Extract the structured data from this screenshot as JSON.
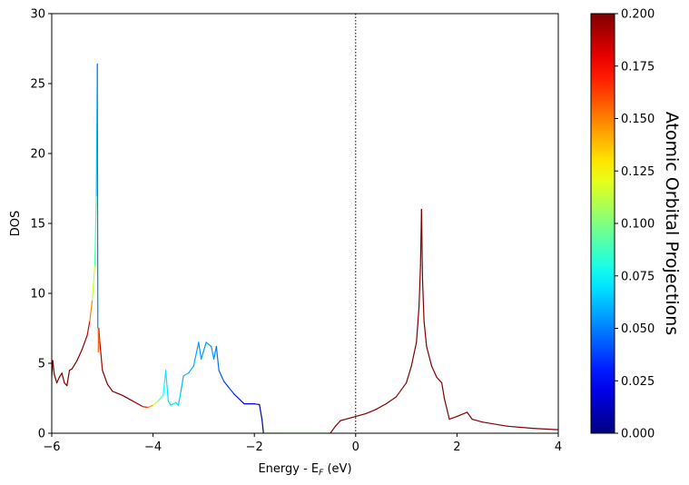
{
  "chart_data": {
    "type": "line",
    "xlabel_parts": [
      "Energy - E",
      "F",
      " (eV)"
    ],
    "ylabel": "DOS",
    "xlim": [
      -6,
      4
    ],
    "ylim": [
      0,
      30
    ],
    "xticks": [
      {
        "value": -6,
        "label": "−6"
      },
      {
        "value": -4,
        "label": "−4"
      },
      {
        "value": -2,
        "label": "−2"
      },
      0,
      2,
      4
    ],
    "yticks": [
      0,
      5,
      10,
      15,
      20,
      25,
      30
    ],
    "vline": {
      "x": 0,
      "style": "dotted",
      "color": "#000000"
    },
    "x": [
      -6,
      -5.98,
      -5.95,
      -5.9,
      -5.85,
      -5.8,
      -5.75,
      -5.7,
      -5.65,
      -5.6,
      -5.5,
      -5.4,
      -5.3,
      -5.25,
      -5.2,
      -5.15,
      -5.12,
      -5.1,
      -5.09,
      -5.08,
      -5.07,
      -5.05,
      -5.0,
      -4.9,
      -4.8,
      -4.6,
      -4.4,
      -4.2,
      -4.1,
      -4.0,
      -3.9,
      -3.8,
      -3.75,
      -3.7,
      -3.65,
      -3.55,
      -3.5,
      -3.45,
      -3.4,
      -3.3,
      -3.2,
      -3.1,
      -3.05,
      -2.95,
      -2.85,
      -2.8,
      -2.75,
      -2.7,
      -2.6,
      -2.4,
      -2.2,
      -2.0,
      -1.9,
      -1.85,
      -1.82,
      -0.5,
      -0.4,
      -0.3,
      -0.1,
      0,
      0.2,
      0.4,
      0.6,
      0.8,
      1.0,
      1.1,
      1.2,
      1.25,
      1.28,
      1.3,
      1.32,
      1.35,
      1.4,
      1.5,
      1.6,
      1.7,
      1.75,
      1.85,
      2.0,
      2.2,
      2.3,
      2.5,
      3.0,
      3.5,
      4.0
    ],
    "series": [
      {
        "values": [
          4.0,
          5.2,
          4.2,
          3.6,
          4.0,
          4.3,
          3.6,
          3.4,
          4.5,
          4.6,
          5.2,
          6.0,
          7.0,
          8.0,
          9.5,
          12,
          17,
          26.4,
          7.5,
          5.8,
          7.5,
          6.5,
          4.5,
          3.5,
          3.0,
          2.7,
          2.3,
          1.9,
          1.85,
          2.0,
          2.3,
          2.7,
          4.5,
          2.3,
          2.0,
          2.2,
          2.0,
          3.0,
          4.1,
          4.3,
          4.8,
          6.5,
          5.3,
          6.5,
          6.2,
          5.3,
          6.2,
          4.5,
          3.7,
          2.8,
          2.1,
          2.1,
          2.05,
          1.0,
          0,
          0,
          0.5,
          0.9,
          1.1,
          1.2,
          1.4,
          1.7,
          2.1,
          2.6,
          3.6,
          4.8,
          6.5,
          9,
          12,
          16,
          11,
          8,
          6.2,
          4.8,
          4.0,
          3.6,
          2.5,
          1.0,
          1.2,
          1.5,
          1.0,
          0.8,
          0.5,
          0.35,
          0.25
        ],
        "projections": [
          0.2,
          0.2,
          0.2,
          0.2,
          0.2,
          0.2,
          0.2,
          0.2,
          0.2,
          0.2,
          0.2,
          0.2,
          0.2,
          0.17,
          0.13,
          0.1,
          0.08,
          0.05,
          0.05,
          0.15,
          0.16,
          0.18,
          0.2,
          0.2,
          0.2,
          0.2,
          0.2,
          0.18,
          0.16,
          0.13,
          0.1,
          0.08,
          0.07,
          0.07,
          0.07,
          0.07,
          0.07,
          0.06,
          0.06,
          0.06,
          0.06,
          0.055,
          0.055,
          0.055,
          0.055,
          0.055,
          0.05,
          0.045,
          0.04,
          0.03,
          0.02,
          0.015,
          0.01,
          0.005,
          0,
          0.2,
          0.2,
          0.2,
          0.2,
          0.2,
          0.2,
          0.2,
          0.2,
          0.2,
          0.2,
          0.2,
          0.2,
          0.2,
          0.2,
          0.2,
          0.2,
          0.2,
          0.2,
          0.2,
          0.2,
          0.2,
          0.2,
          0.2,
          0.2,
          0.2,
          0.2,
          0.2,
          0.2,
          0.2,
          0.2
        ]
      }
    ],
    "colorbar": {
      "label": "Atomic Orbital Projections",
      "colormap": "jet",
      "lim": [
        0,
        0.2
      ],
      "ticks": [
        {
          "value": 0,
          "label": "0.000"
        },
        {
          "value": 0.025,
          "label": "0.025"
        },
        {
          "value": 0.05,
          "label": "0.050"
        },
        {
          "value": 0.075,
          "label": "0.075"
        },
        {
          "value": 0.1,
          "label": "0.100"
        },
        {
          "value": 0.125,
          "label": "0.125"
        },
        {
          "value": 0.15,
          "label": "0.150"
        },
        {
          "value": 0.175,
          "label": "0.175"
        },
        {
          "value": 0.2,
          "label": "0.200"
        }
      ]
    }
  }
}
